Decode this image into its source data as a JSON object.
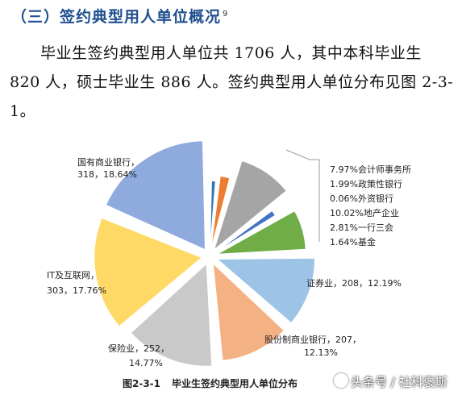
{
  "heading": {
    "text": "（三）签约典型用人单位概况",
    "footnote": "9"
  },
  "paragraph": "毕业生签约典型用人单位共 1706 人，其中本科毕业生 820 人，硕士毕业生 886 人。签约典型用人单位分布见图 2-3-1。",
  "chart_data": {
    "type": "pie",
    "slices": [
      {
        "name": "基金",
        "value": 1.64,
        "color": "#2e75b6"
      },
      {
        "name": "一行三会",
        "value": 2.81,
        "color": "#ed7d31"
      },
      {
        "name": "地产企业",
        "value": 10.02,
        "color": "#a5a5a5"
      },
      {
        "name": "外资银行",
        "value": 0.06,
        "color": "#ffc000"
      },
      {
        "name": "政策性银行",
        "value": 1.99,
        "color": "#4472c4"
      },
      {
        "name": "会计师事务所",
        "value": 7.97,
        "color": "#70ad47"
      },
      {
        "name": "证券业",
        "value": 12.19,
        "color": "#9dc3e6"
      },
      {
        "name": "股份制商业银行",
        "value": 12.13,
        "color": "#f4b183"
      },
      {
        "name": "保险业",
        "value": 14.77,
        "color": "#c9c9c9"
      },
      {
        "name": "IT及互联网",
        "value": 17.76,
        "color": "#ffd966"
      },
      {
        "name": "国有商业银行",
        "value": 18.64,
        "color": "#8faadc"
      }
    ],
    "labels": {
      "guoyou": {
        "line1": "国有商业银行，",
        "line2": "318，18.64%"
      },
      "it": {
        "line1": "IT及互联网，",
        "line2": "303，17.76%"
      },
      "baoxian": {
        "line1": "保险业，252，",
        "line2": "14.77%"
      },
      "gufen": {
        "line1": "股份制商业银行，207，",
        "line2": "12.13%"
      },
      "zhengquan": {
        "line1": "证券业，208，12.19%"
      },
      "small": [
        "7.97%会计师事务所",
        "1.99%政策性银行",
        "0.06%外资银行",
        "10.02%地产企业",
        "2.81%一行三会",
        "1.64%基金"
      ]
    }
  },
  "caption": {
    "number": "图2-3-1",
    "title": "毕业生签约典型用人单位分布"
  },
  "watermark": "头条号 / 社科褒斯"
}
